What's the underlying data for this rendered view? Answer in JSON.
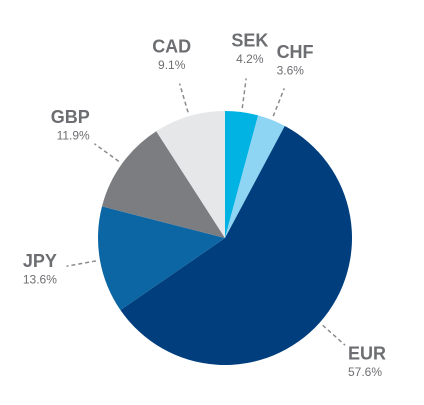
{
  "chart_data": {
    "type": "pie",
    "categories": [
      "SEK",
      "CHF",
      "EUR",
      "JPY",
      "GBP",
      "CAD"
    ],
    "values": [
      4.2,
      3.6,
      57.6,
      13.6,
      11.9,
      9.1
    ],
    "value_labels": [
      "4.2%",
      "3.6%",
      "57.6%",
      "13.6%",
      "11.9%",
      "9.1%"
    ],
    "colors": [
      "#00b3e3",
      "#8dd5f3",
      "#003e7e",
      "#0b66a3",
      "#7b7d81",
      "#e6e7e9"
    ]
  }
}
